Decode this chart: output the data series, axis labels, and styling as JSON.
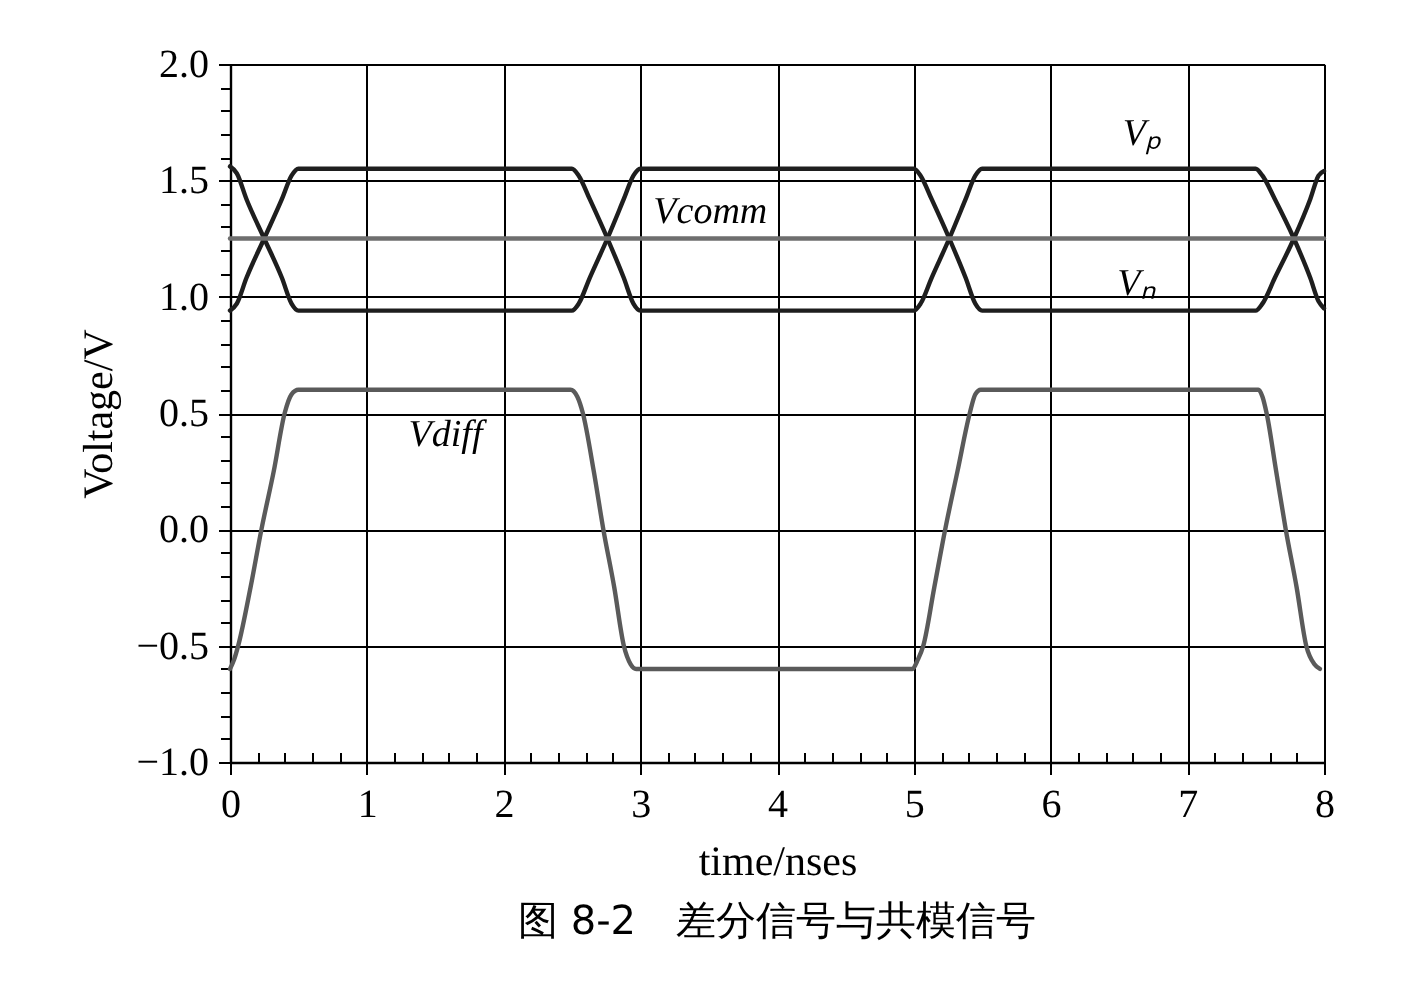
{
  "chart_data": {
    "type": "line",
    "title": "图 8-2　差分信号与共模信号",
    "xlabel": "time/nses",
    "ylabel": "Voltage/V",
    "xlim": [
      0,
      8
    ],
    "ylim": [
      -1,
      2
    ],
    "xticks": [
      0,
      {
        "value": 0.2,
        "label": null
      },
      {
        "value": 0.4,
        "label": null
      },
      {
        "value": 0.6,
        "label": null
      },
      {
        "value": 0.8,
        "label": null
      },
      1,
      {
        "value": 1.2,
        "label": null
      },
      {
        "value": 1.4,
        "label": null
      },
      {
        "value": 1.6,
        "label": null
      },
      {
        "value": 1.8,
        "label": null
      },
      2,
      {
        "value": 2.2,
        "label": null
      },
      {
        "value": 2.4,
        "label": null
      },
      {
        "value": 2.6,
        "label": null
      },
      {
        "value": 2.8,
        "label": null
      },
      3,
      {
        "value": 3.2,
        "label": null
      },
      {
        "value": 3.4,
        "label": null
      },
      {
        "value": 3.6,
        "label": null
      },
      {
        "value": 3.8,
        "label": null
      },
      4,
      {
        "value": 4.2,
        "label": null
      },
      {
        "value": 4.4,
        "label": null
      },
      {
        "value": 4.6,
        "label": null
      },
      {
        "value": 4.8,
        "label": null
      },
      5,
      {
        "value": 5.2,
        "label": null
      },
      {
        "value": 5.4,
        "label": null
      },
      {
        "value": 5.6,
        "label": null
      },
      {
        "value": 5.8,
        "label": null
      },
      6,
      {
        "value": 6.2,
        "label": null
      },
      {
        "value": 6.4,
        "label": null
      },
      {
        "value": 6.6,
        "label": null
      },
      {
        "value": 6.8,
        "label": null
      },
      7,
      {
        "value": 7.2,
        "label": null
      },
      {
        "value": 7.4,
        "label": null
      },
      {
        "value": 7.6,
        "label": null
      },
      {
        "value": 7.8,
        "label": null
      },
      8
    ],
    "yticks": [
      {
        "value": -1.0,
        "label": "−1.0"
      },
      {
        "value": -0.9,
        "label": null
      },
      {
        "value": -0.8,
        "label": null
      },
      {
        "value": -0.7,
        "label": null
      },
      {
        "value": -0.6,
        "label": null
      },
      {
        "value": -0.5,
        "label": "−0.5"
      },
      {
        "value": -0.4,
        "label": null
      },
      {
        "value": -0.3,
        "label": null
      },
      {
        "value": -0.2,
        "label": null
      },
      {
        "value": -0.1,
        "label": null
      },
      {
        "value": 0,
        "label": "0.0"
      },
      {
        "value": 0.1,
        "label": null
      },
      {
        "value": 0.2,
        "label": null
      },
      {
        "value": 0.3,
        "label": null
      },
      {
        "value": 0.4,
        "label": null
      },
      {
        "value": 0.5,
        "label": "0.5"
      },
      {
        "value": 0.6,
        "label": null
      },
      {
        "value": 0.7,
        "label": null
      },
      {
        "value": 0.8,
        "label": null
      },
      {
        "value": 0.9,
        "label": null
      },
      {
        "value": 1,
        "label": "1.0"
      },
      {
        "value": 1.1,
        "label": null
      },
      {
        "value": 1.2,
        "label": null
      },
      {
        "value": 1.3,
        "label": null
      },
      {
        "value": 1.4,
        "label": null
      },
      {
        "value": 1.5,
        "label": "1.5"
      },
      {
        "value": 1.6,
        "label": null
      },
      {
        "value": 1.7,
        "label": null
      },
      {
        "value": 1.8,
        "label": null
      },
      {
        "value": 1.9,
        "label": null
      },
      {
        "value": 2,
        "label": "2.0"
      }
    ],
    "grid": true,
    "series": [
      {
        "name": "Vₚ",
        "color": "#1e1e1e",
        "x": [
          0,
          0.05,
          0.12,
          0.25,
          0.38,
          0.45,
          0.5,
          2.5,
          2.55,
          2.63,
          2.76,
          2.88,
          2.95,
          3.0,
          5.0,
          5.05,
          5.13,
          5.26,
          5.38,
          5.45,
          5.5,
          7.5,
          7.55,
          7.64,
          7.78,
          7.9,
          7.96,
          8.0
        ],
        "values": [
          0.94,
          0.97,
          1.08,
          1.25,
          1.42,
          1.52,
          1.55,
          1.55,
          1.52,
          1.42,
          1.25,
          1.08,
          0.97,
          0.94,
          0.94,
          0.97,
          1.08,
          1.25,
          1.42,
          1.52,
          1.55,
          1.55,
          1.52,
          1.42,
          1.25,
          1.08,
          0.98,
          0.95
        ]
      },
      {
        "name": "Vₙ",
        "color": "#1e1e1e",
        "x": [
          0,
          0.05,
          0.12,
          0.25,
          0.38,
          0.45,
          0.5,
          2.5,
          2.55,
          2.63,
          2.76,
          2.88,
          2.95,
          3.0,
          5.0,
          5.05,
          5.13,
          5.26,
          5.38,
          5.45,
          5.5,
          7.5,
          7.55,
          7.64,
          7.78,
          7.9,
          7.96,
          8.0
        ],
        "values": [
          1.56,
          1.53,
          1.42,
          1.25,
          1.08,
          0.97,
          0.94,
          0.94,
          0.97,
          1.08,
          1.25,
          1.42,
          1.52,
          1.55,
          1.55,
          1.52,
          1.42,
          1.25,
          1.08,
          0.97,
          0.94,
          0.94,
          0.97,
          1.08,
          1.25,
          1.42,
          1.52,
          1.54
        ]
      },
      {
        "name": "Vcomm",
        "color": "#6e6e6e",
        "x": [
          0,
          8
        ],
        "values": [
          1.25,
          1.25
        ]
      },
      {
        "name": "Vdiff",
        "color": "#5a5a5a",
        "x": [
          0,
          0.03,
          0.06,
          0.15,
          0.23,
          0.32,
          0.4,
          0.45,
          0.5,
          2.49,
          2.54,
          2.58,
          2.66,
          2.73,
          2.81,
          2.88,
          2.93,
          2.97,
          4.99,
          5.03,
          5.07,
          5.15,
          5.23,
          5.32,
          5.41,
          5.45,
          5.49,
          7.52,
          7.55,
          7.58,
          7.65,
          7.72,
          7.8,
          7.87,
          7.93,
          7.97
        ],
        "values": [
          -0.6,
          -0.56,
          -0.5,
          -0.25,
          0,
          0.25,
          0.5,
          0.58,
          0.6,
          0.6,
          0.57,
          0.5,
          0.25,
          0,
          -0.25,
          -0.5,
          -0.58,
          -0.6,
          -0.6,
          -0.56,
          -0.5,
          -0.25,
          0,
          0.25,
          0.5,
          0.58,
          0.6,
          0.6,
          0.57,
          0.5,
          0.25,
          0,
          -0.25,
          -0.5,
          -0.58,
          -0.6
        ]
      }
    ]
  }
}
